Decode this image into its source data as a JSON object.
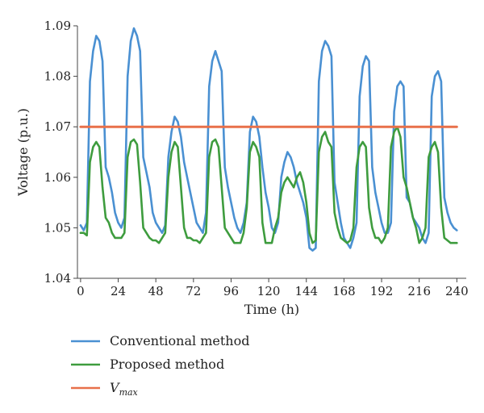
{
  "chart_data": {
    "type": "line",
    "title": "",
    "xlabel": "Time (h)",
    "ylabel": "Voltage (p.u.)",
    "xlim": [
      -2,
      246
    ],
    "ylim": [
      1.04,
      1.09
    ],
    "xticks": [
      0,
      24,
      48,
      72,
      96,
      120,
      144,
      168,
      192,
      216,
      240
    ],
    "xtick_labels": [
      "0",
      "24",
      "48",
      "72",
      "96",
      "120",
      "144",
      "168",
      "192",
      "216",
      "240"
    ],
    "yticks": [
      1.04,
      1.05,
      1.06,
      1.07,
      1.08,
      1.09
    ],
    "ytick_labels": [
      "1.04",
      "1.05",
      "1.06",
      "1.07",
      "1.08",
      "1.09"
    ],
    "grid": false,
    "legend_position": "bottom-left",
    "series": [
      {
        "name": "Conventional method",
        "color": "#4a90d2",
        "x": [
          0,
          2,
          4,
          6,
          8,
          10,
          12,
          14,
          16,
          18,
          20,
          22,
          24,
          26,
          28,
          30,
          32,
          34,
          36,
          38,
          40,
          42,
          44,
          46,
          48,
          50,
          52,
          54,
          56,
          58,
          60,
          62,
          64,
          66,
          68,
          70,
          72,
          74,
          76,
          78,
          80,
          82,
          84,
          86,
          88,
          90,
          92,
          94,
          96,
          98,
          100,
          102,
          104,
          106,
          108,
          110,
          112,
          114,
          116,
          118,
          120,
          122,
          124,
          126,
          128,
          130,
          132,
          134,
          136,
          138,
          140,
          142,
          144,
          146,
          148,
          150,
          152,
          154,
          156,
          158,
          160,
          162,
          164,
          166,
          168,
          170,
          172,
          174,
          176,
          178,
          180,
          182,
          184,
          186,
          188,
          190,
          192,
          194,
          196,
          198,
          200,
          202,
          204,
          206,
          208,
          210,
          212,
          214,
          216,
          218,
          220,
          222,
          224,
          226,
          228,
          230,
          232,
          234,
          236,
          238,
          240
        ],
        "y": [
          1.0505,
          1.0495,
          1.051,
          1.079,
          1.085,
          1.088,
          1.087,
          1.083,
          1.062,
          1.06,
          1.057,
          1.053,
          1.051,
          1.05,
          1.052,
          1.08,
          1.087,
          1.0895,
          1.088,
          1.085,
          1.064,
          1.061,
          1.058,
          1.053,
          1.051,
          1.05,
          1.049,
          1.0505,
          1.064,
          1.069,
          1.072,
          1.071,
          1.068,
          1.063,
          1.06,
          1.057,
          1.054,
          1.051,
          1.05,
          1.049,
          1.053,
          1.078,
          1.083,
          1.085,
          1.083,
          1.081,
          1.062,
          1.058,
          1.055,
          1.052,
          1.05,
          1.049,
          1.051,
          1.055,
          1.069,
          1.072,
          1.071,
          1.068,
          1.062,
          1.057,
          1.054,
          1.05,
          1.049,
          1.051,
          1.06,
          1.063,
          1.065,
          1.064,
          1.062,
          1.059,
          1.057,
          1.055,
          1.052,
          1.046,
          1.0455,
          1.046,
          1.079,
          1.085,
          1.087,
          1.086,
          1.084,
          1.059,
          1.055,
          1.051,
          1.048,
          1.047,
          1.046,
          1.048,
          1.051,
          1.076,
          1.082,
          1.084,
          1.083,
          1.062,
          1.057,
          1.054,
          1.051,
          1.049,
          1.049,
          1.051,
          1.073,
          1.078,
          1.079,
          1.078,
          1.056,
          1.055,
          1.052,
          1.051,
          1.05,
          1.048,
          1.047,
          1.049,
          1.076,
          1.08,
          1.081,
          1.079,
          1.056,
          1.053,
          1.051,
          1.05,
          1.0495
        ]
      },
      {
        "name": "Proposed method",
        "color": "#3e9c3e",
        "x": [
          0,
          2,
          4,
          6,
          8,
          10,
          12,
          14,
          16,
          18,
          20,
          22,
          24,
          26,
          28,
          30,
          32,
          34,
          36,
          38,
          40,
          42,
          44,
          46,
          48,
          50,
          52,
          54,
          56,
          58,
          60,
          62,
          64,
          66,
          68,
          70,
          72,
          74,
          76,
          78,
          80,
          82,
          84,
          86,
          88,
          90,
          92,
          94,
          96,
          98,
          100,
          102,
          104,
          106,
          108,
          110,
          112,
          114,
          116,
          118,
          120,
          122,
          124,
          126,
          128,
          130,
          132,
          134,
          136,
          138,
          140,
          142,
          144,
          146,
          148,
          150,
          152,
          154,
          156,
          158,
          160,
          162,
          164,
          166,
          168,
          170,
          172,
          174,
          176,
          178,
          180,
          182,
          184,
          186,
          188,
          190,
          192,
          194,
          196,
          198,
          200,
          202,
          204,
          206,
          208,
          210,
          212,
          214,
          216,
          218,
          220,
          222,
          224,
          226,
          228,
          230,
          232,
          234,
          236,
          238,
          240
        ],
        "y": [
          1.049,
          1.049,
          1.0485,
          1.063,
          1.066,
          1.067,
          1.066,
          1.058,
          1.052,
          1.051,
          1.049,
          1.048,
          1.048,
          1.048,
          1.049,
          1.064,
          1.067,
          1.0675,
          1.0665,
          1.059,
          1.05,
          1.049,
          1.048,
          1.0475,
          1.0475,
          1.047,
          1.048,
          1.049,
          1.06,
          1.065,
          1.067,
          1.066,
          1.058,
          1.05,
          1.048,
          1.048,
          1.0475,
          1.0475,
          1.047,
          1.048,
          1.049,
          1.064,
          1.067,
          1.0675,
          1.066,
          1.058,
          1.05,
          1.049,
          1.048,
          1.047,
          1.047,
          1.047,
          1.049,
          1.054,
          1.065,
          1.067,
          1.066,
          1.064,
          1.051,
          1.047,
          1.047,
          1.047,
          1.05,
          1.052,
          1.057,
          1.059,
          1.06,
          1.059,
          1.058,
          1.06,
          1.061,
          1.059,
          1.055,
          1.049,
          1.047,
          1.0475,
          1.065,
          1.068,
          1.069,
          1.067,
          1.066,
          1.053,
          1.05,
          1.048,
          1.0475,
          1.047,
          1.0475,
          1.05,
          1.062,
          1.066,
          1.067,
          1.066,
          1.054,
          1.05,
          1.048,
          1.048,
          1.047,
          1.048,
          1.05,
          1.066,
          1.069,
          1.07,
          1.068,
          1.06,
          1.058,
          1.055,
          1.052,
          1.05,
          1.047,
          1.048,
          1.05,
          1.064,
          1.066,
          1.067,
          1.065,
          1.054,
          1.048,
          1.0475,
          1.047,
          1.047,
          1.047
        ]
      },
      {
        "name": "V",
        "name_subscript": "max",
        "color": "#e8704a",
        "x": [
          0,
          240
        ],
        "y": [
          1.07,
          1.07
        ]
      }
    ]
  }
}
